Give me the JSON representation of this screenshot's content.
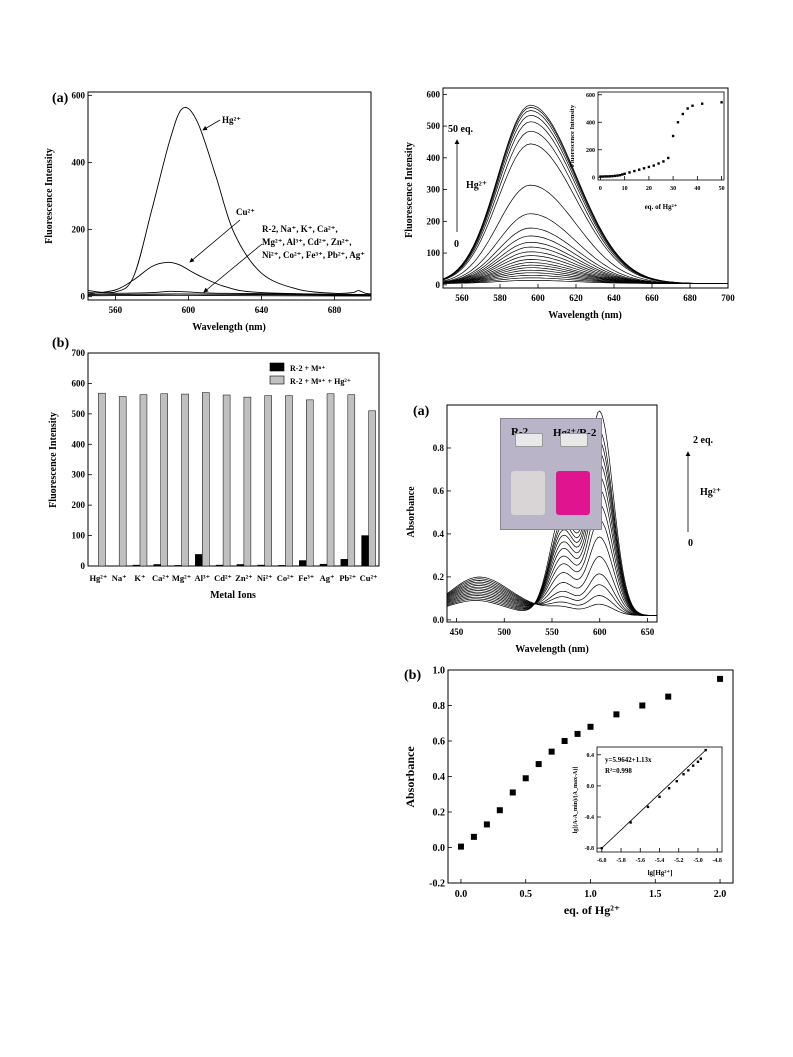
{
  "chart_data": [
    {
      "id": "fig1a",
      "type": "line",
      "panel_label": "(a)",
      "xlabel": "Wavelength (nm)",
      "ylabel": "Fluorescence Intensity",
      "xlim": [
        545,
        700
      ],
      "ylim": [
        -10,
        610
      ],
      "xticks": [
        560,
        600,
        640,
        680
      ],
      "yticks": [
        0,
        200,
        400,
        600
      ],
      "series": [
        {
          "key": "hg",
          "points": [
            [
              545,
              18
            ],
            [
              560,
              14
            ],
            [
              570,
              60
            ],
            [
              580,
              260
            ],
            [
              590,
              470
            ],
            [
              597,
              562
            ],
            [
              605,
              520
            ],
            [
              615,
              360
            ],
            [
              625,
              190
            ],
            [
              640,
              70
            ],
            [
              660,
              22
            ],
            [
              680,
              10
            ],
            [
              690,
              12
            ],
            [
              693,
              18
            ],
            [
              697,
              10
            ],
            [
              700,
              8
            ]
          ]
        },
        {
          "key": "cu",
          "points": [
            [
              545,
              8
            ],
            [
              560,
              20
            ],
            [
              570,
              50
            ],
            [
              580,
              90
            ],
            [
              588,
              102
            ],
            [
              595,
              95
            ],
            [
              605,
              65
            ],
            [
              620,
              30
            ],
            [
              640,
              12
            ],
            [
              700,
              5
            ]
          ]
        },
        {
          "key": "m1",
          "points": [
            [
              545,
              12
            ],
            [
              560,
              10
            ],
            [
              580,
              12
            ],
            [
              590,
              16
            ],
            [
              600,
              14
            ],
            [
              620,
              10
            ],
            [
              700,
              6
            ]
          ]
        },
        {
          "key": "m2",
          "points": [
            [
              545,
              6
            ],
            [
              560,
              6
            ],
            [
              590,
              8
            ],
            [
              620,
              7
            ],
            [
              700,
              4
            ]
          ]
        },
        {
          "key": "m3",
          "points": [
            [
              545,
              3
            ],
            [
              560,
              3
            ],
            [
              590,
              4
            ],
            [
              620,
              3
            ],
            [
              700,
              2
            ]
          ]
        }
      ],
      "annotations": {
        "hg": "Hg²⁺",
        "cu": "Cu²⁺",
        "others_line1": "R-2, Na⁺, K⁺, Ca²⁺,",
        "others_line2": "Mg²⁺, Al³⁺, Cd²⁺, Zn²⁺,",
        "others_line3": "Ni²⁺, Co²⁺, Fe³⁺, Pb²⁺, Ag⁺"
      }
    },
    {
      "id": "fig1right",
      "type": "line",
      "xlabel": "Wavelength (nm)",
      "ylabel": "Fluorescence Intensity",
      "xlim": [
        550,
        700
      ],
      "ylim": [
        -10,
        620
      ],
      "xticks": [
        560,
        580,
        600,
        620,
        640,
        660,
        680,
        700
      ],
      "yticks": [
        0,
        100,
        200,
        300,
        400,
        500,
        600
      ],
      "peak_wavelength": 596,
      "peak_heights": [
        10,
        18,
        26,
        34,
        42,
        50,
        58,
        66,
        76,
        88,
        100,
        115,
        130,
        150,
        175,
        220,
        310,
        440,
        480,
        510,
        530,
        545,
        555,
        562
      ],
      "annotations": {
        "top": "50 eq.",
        "ion": "Hg²⁺",
        "bottom": "0"
      },
      "inset": {
        "type": "scatter",
        "xlabel": "eq. of Hg²⁺",
        "ylabel": "Fluorescence Intensity",
        "xlim": [
          -1,
          51
        ],
        "ylim": [
          -20,
          620
        ],
        "xticks": [
          0,
          10,
          20,
          30,
          40,
          50
        ],
        "yticks": [
          0,
          200,
          400,
          600
        ],
        "x": [
          0,
          1,
          2,
          3,
          4,
          5,
          6,
          7,
          8,
          9,
          10,
          12,
          14,
          16,
          18,
          20,
          22,
          24,
          26,
          28,
          30,
          32,
          34,
          36,
          38,
          42,
          50
        ],
        "y": [
          5,
          5,
          6,
          6,
          7,
          8,
          10,
          12,
          15,
          20,
          25,
          35,
          45,
          55,
          65,
          75,
          85,
          100,
          115,
          140,
          300,
          400,
          460,
          500,
          520,
          535,
          545
        ]
      }
    },
    {
      "id": "fig1b",
      "type": "bar",
      "panel_label": "(b)",
      "xlabel": "Metal Ions",
      "ylabel": "Fluorescence Intensity",
      "ylim": [
        0,
        700
      ],
      "yticks": [
        0,
        100,
        200,
        300,
        400,
        500,
        600,
        700
      ],
      "categories": [
        "Hg²⁺",
        "Na⁺",
        "K⁺",
        "Ca²⁺",
        "Mg²⁺",
        "Al³⁺",
        "Cd²⁺",
        "Zn²⁺",
        "Ni²⁺",
        "Co²⁺",
        "Fe³⁺",
        "Ag⁺",
        "Pb²⁺",
        "Cu²⁺"
      ],
      "series": [
        {
          "name": "R-2 + Mⁿ⁺",
          "color": "#000000",
          "values": [
            0,
            0,
            3,
            5,
            2,
            38,
            3,
            5,
            3,
            2,
            18,
            6,
            22,
            100
          ]
        },
        {
          "name": "R-2 + Mⁿ⁺ + Hg²⁺",
          "color": "#c0c0c0",
          "values": [
            568,
            557,
            563,
            566,
            565,
            570,
            562,
            555,
            560,
            560,
            546,
            566,
            563,
            510
          ]
        }
      ],
      "legend": "top-right"
    },
    {
      "id": "fig2a",
      "type": "line",
      "panel_label": "(a)",
      "xlabel": "Wavelength (nm)",
      "ylabel": "Absorbance",
      "xlim": [
        440,
        660
      ],
      "ylim": [
        -0.01,
        1.0
      ],
      "xticks": [
        450,
        500,
        550,
        600,
        650
      ],
      "yticks": [
        0.0,
        0.2,
        0.4,
        0.6,
        0.8
      ],
      "peak_heights": [
        0.05,
        0.09,
        0.14,
        0.19,
        0.27,
        0.36,
        0.44,
        0.51,
        0.58,
        0.64,
        0.7,
        0.75,
        0.8,
        0.85,
        0.94
      ],
      "annotations": {
        "top": "2 eq.",
        "ion": "Hg²⁺",
        "bottom": "0"
      },
      "photo": {
        "vial1": "R-2",
        "vial2": "Hg²⁺/R-2",
        "color1": "#d9d4d6",
        "color2": "#e0148e"
      }
    },
    {
      "id": "fig2b",
      "type": "scatter",
      "panel_label": "(b)",
      "xlabel": "eq. of Hg²⁺",
      "ylabel": "Absorbance",
      "xlim": [
        -0.1,
        2.1
      ],
      "ylim": [
        -0.2,
        1.0
      ],
      "xticks": [
        0.0,
        0.5,
        1.0,
        1.5,
        2.0
      ],
      "yticks": [
        -0.2,
        0.0,
        0.2,
        0.4,
        0.6,
        0.8,
        1.0
      ],
      "x": [
        0.0,
        0.1,
        0.2,
        0.3,
        0.4,
        0.5,
        0.6,
        0.7,
        0.8,
        0.9,
        1.0,
        1.2,
        1.4,
        1.6,
        2.0
      ],
      "y": [
        0.005,
        0.06,
        0.13,
        0.21,
        0.31,
        0.39,
        0.47,
        0.54,
        0.6,
        0.64,
        0.68,
        0.75,
        0.8,
        0.85,
        0.95
      ],
      "inset": {
        "type": "scatter",
        "xlabel": "lg[Hg²⁺]",
        "ylabel": "lg[(A-A_min)/(A_max-A)]",
        "equation": "y=5.9642+1.13x",
        "r2": "R²=0.998",
        "xlim": [
          -6.05,
          -4.75
        ],
        "ylim": [
          -0.85,
          0.5
        ],
        "xticks": [
          -6.0,
          -5.8,
          -5.6,
          -5.4,
          -5.2,
          -5.0,
          -4.8
        ],
        "xtick_labels": [
          "-6.0",
          "-5.8",
          "-5.6",
          "-5.4",
          "-5.2",
          "-5.0",
          "-4.8"
        ],
        "yticks": [
          -0.8,
          -0.4,
          0.0,
          0.4
        ],
        "ytick_labels": [
          "-0.8",
          "-0.4",
          "0.0",
          "0.4"
        ],
        "x": [
          -6.0,
          -5.7,
          -5.52,
          -5.4,
          -5.3,
          -5.22,
          -5.15,
          -5.1,
          -5.05,
          -5.0,
          -4.97,
          -4.92
        ],
        "y": [
          -0.8,
          -0.47,
          -0.27,
          -0.14,
          -0.03,
          0.06,
          0.15,
          0.2,
          0.26,
          0.31,
          0.35,
          0.46
        ]
      }
    }
  ]
}
